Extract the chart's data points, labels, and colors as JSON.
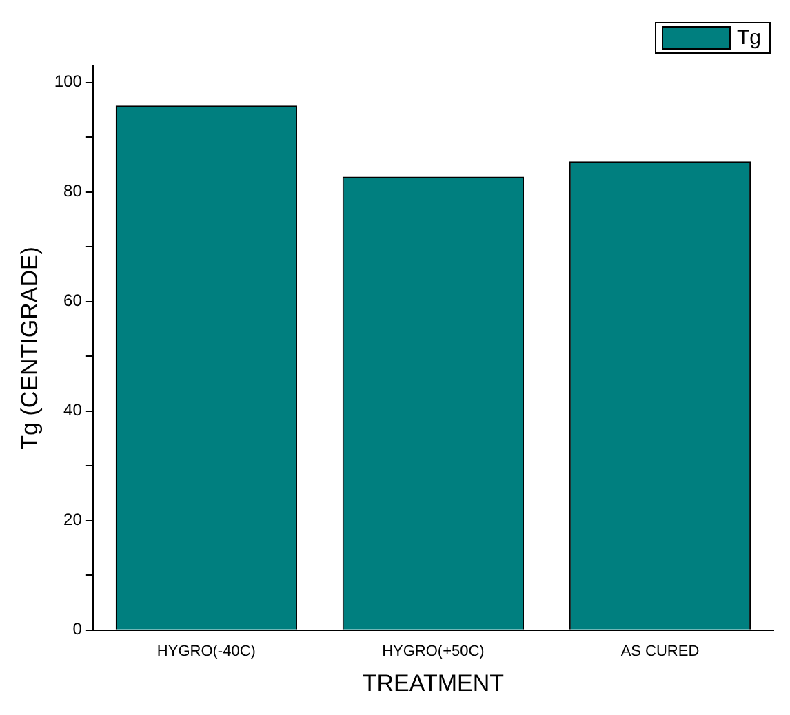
{
  "chart_data": {
    "type": "bar",
    "xlabel": "TREATMENT",
    "ylabel": "Tg (CENTIGRADE)",
    "categories": [
      "HYGRO(-40C)",
      "HYGRO(+50C)",
      "AS CURED"
    ],
    "series": [
      {
        "name": "Tg",
        "color": "#007f7f",
        "values": [
          95.8,
          82.8,
          85.6
        ]
      }
    ],
    "ylim": [
      0,
      103
    ],
    "yticks": [
      0,
      {
        "value": 10,
        "label": null
      },
      20,
      {
        "value": 30,
        "label": null
      },
      40,
      {
        "value": 50,
        "label": null
      },
      60,
      {
        "value": 70,
        "label": null
      },
      80,
      {
        "value": 90,
        "label": null
      },
      100
    ],
    "grid": false,
    "legend": "top right"
  }
}
